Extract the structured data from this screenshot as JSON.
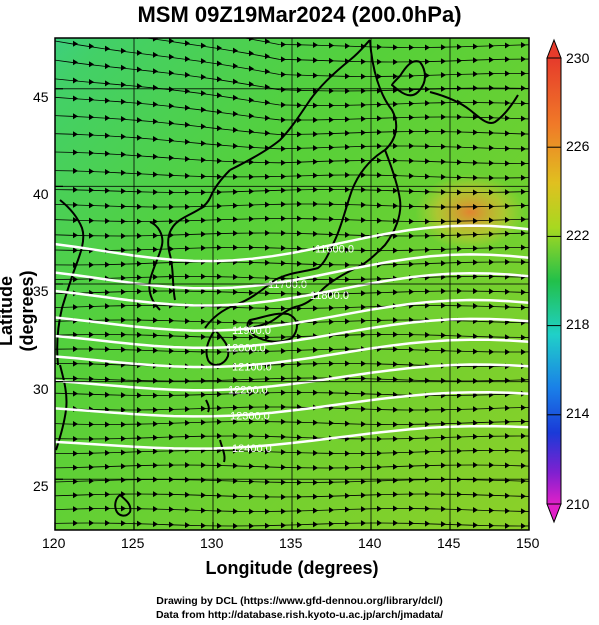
{
  "title": "MSM 09Z19Mar2024 (200.0hPa)",
  "xlabel": "Longitude (degrees)",
  "ylabel": "Latitude  (degrees)",
  "x_ticks": [
    "120",
    "125",
    "130",
    "135",
    "140",
    "145",
    "150"
  ],
  "y_ticks": [
    "25",
    "30",
    "35",
    "40",
    "45"
  ],
  "colorbar": {
    "ticks": [
      "230",
      "226",
      "222",
      "218",
      "214",
      "210"
    ],
    "colors": {
      "top": "#e63b2b",
      "orange": "#f07a28",
      "yellow": "#d8d820",
      "green": "#22c04a",
      "cyan": "#20d0d0",
      "blue": "#1a3ad8",
      "magenta": "#d020d0"
    }
  },
  "contours": [
    {
      "label": "11600.0"
    },
    {
      "label": "11700.0"
    },
    {
      "label": "11800.0"
    },
    {
      "label": "11900.0"
    },
    {
      "label": "12000.0"
    },
    {
      "label": "12100.0"
    },
    {
      "label": "12200.0"
    },
    {
      "label": "12300.0"
    },
    {
      "label": "12400.0"
    }
  ],
  "credits": {
    "line1": "Drawing by DCL (https://www.gfd-dennou.org/library/dcl/)",
    "line2": "Data from http://database.rish.kyoto-u.ac.jp/arch/jmadata/"
  },
  "chart_data": {
    "type": "map",
    "title": "MSM 09Z19Mar2024 (200.0hPa)",
    "xlabel": "Longitude (degrees)",
    "ylabel": "Latitude  (degrees)",
    "xlim": [
      120,
      150
    ],
    "ylim": [
      22.4,
      47.6
    ],
    "color_scale_range": [
      210,
      230
    ],
    "contour_interval": 100
  }
}
